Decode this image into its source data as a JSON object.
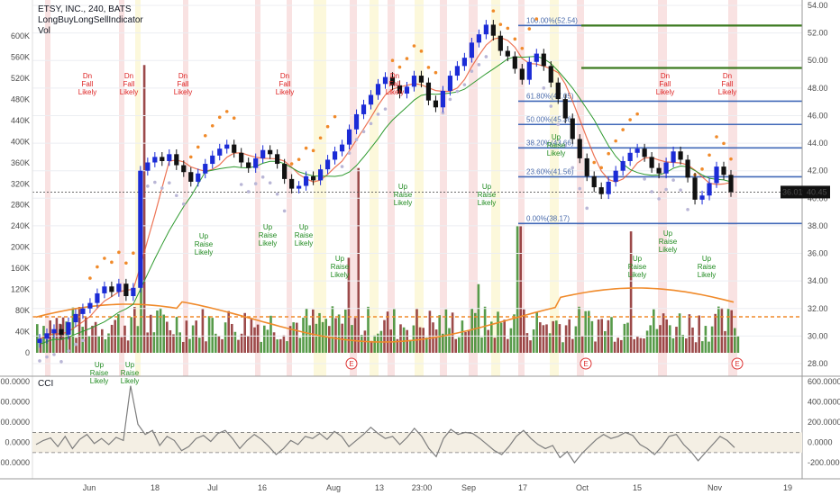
{
  "chart_data": [
    {
      "type": "candlestick",
      "title": "ETSY, INC., 240, BATS",
      "indicators": [
        "LongBuyLongSellIndicator",
        "Vol"
      ],
      "ylim": [
        28,
        54
      ],
      "y_ticks": [
        "28.00",
        "30.00",
        "32.00",
        "34.00",
        "36.00",
        "38.00",
        "40.00",
        "42.00",
        "44.00",
        "46.00",
        "48.00",
        "50.00",
        "52.00",
        "54.00"
      ],
      "vol_ticks": [
        "0",
        "40K",
        "80K",
        "120K",
        "160K",
        "200K",
        "240K",
        "280K",
        "320K",
        "360K",
        "400K",
        "440K",
        "480K",
        "520K",
        "560K",
        "600K"
      ],
      "last_price": "40.45",
      "last_change": "36.01%",
      "x_ticks": [
        "Jun",
        "18",
        "Jul",
        "16",
        "Aug",
        "13",
        "23:00",
        "Sep",
        "17",
        "Oct",
        "15",
        "Nov",
        "19"
      ],
      "close_series": [
        29.8,
        30.2,
        30.5,
        30.1,
        31.0,
        31.6,
        32.0,
        32.4,
        33.1,
        33.6,
        33.2,
        33.8,
        32.9,
        33.5,
        42.0,
        42.6,
        43.0,
        42.7,
        43.2,
        42.4,
        41.9,
        41.2,
        41.8,
        42.5,
        43.1,
        43.6,
        43.9,
        43.3,
        42.6,
        42.2,
        42.9,
        43.5,
        43.2,
        42.5,
        41.4,
        40.7,
        40.9,
        41.6,
        41.3,
        42.1,
        42.8,
        43.4,
        43.9,
        45.0,
        46.1,
        46.8,
        47.5,
        48.3,
        48.8,
        48.2,
        47.6,
        48.1,
        48.9,
        48.4,
        47.1,
        46.6,
        47.8,
        48.9,
        49.6,
        50.2,
        51.3,
        51.9,
        52.6,
        51.8,
        50.7,
        50.3,
        49.4,
        48.6,
        49.9,
        50.5,
        49.6,
        48.4,
        47.2,
        45.8,
        44.3,
        42.9,
        41.6,
        40.8,
        40.3,
        41.2,
        42.0,
        42.7,
        43.3,
        43.6,
        43.0,
        42.2,
        41.8,
        42.6,
        43.4,
        42.8,
        41.5,
        39.9,
        40.2,
        41.1,
        42.3,
        41.7,
        40.45
      ],
      "fib_levels": [
        {
          "label": "100.00%(52.54)",
          "value": 52.54
        },
        {
          "label": "61.80%(47.05)",
          "value": 47.05
        },
        {
          "label": "50.00%(45.36)",
          "value": 45.36
        },
        {
          "label": "38.20%(43.66)",
          "value": 43.66
        },
        {
          "label": "23.60%(41.56)",
          "value": 41.56
        },
        {
          "label": "0.00%(38.17)",
          "value": 38.17
        }
      ],
      "green_levels": [
        52.54,
        49.46
      ],
      "reference_lines": {
        "dotted": 40.45,
        "dashed_orange": 31.55
      },
      "signals": {
        "sell": [
          "Dn",
          "Fall",
          "Likely"
        ],
        "buy": [
          "Up",
          "Raise",
          "Likely"
        ]
      },
      "earnings_marker": "E"
    },
    {
      "type": "line",
      "title": "CCI",
      "y_ticks": [
        "-200.0000",
        "0.0000",
        "200.0000",
        "400.0000",
        "600.0000"
      ],
      "ylim": [
        -270,
        620
      ],
      "band": [
        -100,
        100
      ],
      "values": [
        -20,
        20,
        45,
        -40,
        60,
        -60,
        30,
        80,
        -10,
        40,
        -20,
        50,
        20,
        560,
        180,
        80,
        120,
        -30,
        60,
        20,
        -80,
        -40,
        40,
        70,
        10,
        90,
        120,
        40,
        -60,
        20,
        80,
        30,
        -40,
        -120,
        -60,
        20,
        -20,
        60,
        40,
        90,
        30,
        110,
        60,
        -40,
        20,
        80,
        150,
        90,
        40,
        60,
        -20,
        50,
        140,
        60,
        -60,
        -140,
        40,
        130,
        80,
        100,
        90,
        40,
        -20,
        -80,
        -120,
        -40,
        60,
        120,
        40,
        -20,
        -60,
        -30,
        -150,
        -90,
        -200,
        -110,
        -40,
        30,
        80,
        40,
        60,
        100,
        70,
        -20,
        -60,
        -120,
        -40,
        60,
        80,
        -20,
        -90,
        -180,
        -100,
        -20,
        60,
        20,
        -50
      ]
    }
  ]
}
